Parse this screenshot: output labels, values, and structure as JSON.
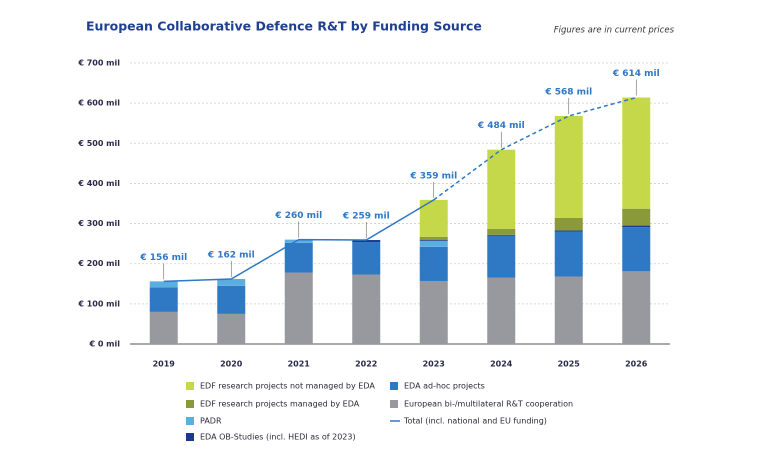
{
  "chart_data": {
    "type": "bar",
    "stacked": true,
    "title": "European Collaborative Defence R&T by Funding Source",
    "note": "Figures are in current prices",
    "categories": [
      "2019",
      "2020",
      "2021",
      "2022",
      "2023",
      "2024",
      "2025",
      "2026"
    ],
    "series": [
      {
        "name": "European bi-/multilateral R&T cooperation",
        "color": "#98999e",
        "values": [
          80,
          75,
          178,
          173,
          157,
          165,
          168,
          181
        ]
      },
      {
        "name": "EDA ad-hoc projects",
        "color": "#2f78c4",
        "values": [
          61,
          70,
          74,
          81,
          85,
          105,
          112,
          110
        ]
      },
      {
        "name": "PADR",
        "color": "#5aaee0",
        "values": [
          15,
          17,
          8,
          0,
          15,
          0,
          0,
          0
        ]
      },
      {
        "name": "EDA OB-Studies (incl. HEDI as of 2023)",
        "color": "#1c3a8a",
        "values": [
          0,
          0,
          0,
          5,
          2,
          2,
          3,
          4
        ]
      },
      {
        "name": "EDF research projects managed by EDA",
        "color": "#8a9a3a",
        "values": [
          0,
          0,
          0,
          0,
          8,
          15,
          31,
          42
        ]
      },
      {
        "name": "EDF research projects not managed by EDA",
        "color": "#c5d84a",
        "values": [
          0,
          0,
          0,
          0,
          92,
          197,
          254,
          277
        ]
      }
    ],
    "total": {
      "name": "Total (incl. national and EU funding)",
      "type": "line",
      "color": "#2f78c4",
      "dash_start": 4,
      "values": [
        156,
        162,
        260,
        259,
        359,
        484,
        568,
        614
      ],
      "value_labels": [
        "€ 156 mil",
        "€ 162 mil",
        "€ 260 mil",
        "€ 259 mil",
        "€ 359 mil",
        "€ 484 mil",
        "€ 568 mil",
        "€ 614 mil"
      ]
    },
    "ylim": [
      0,
      700
    ],
    "yticks": [
      {
        "value": 0,
        "label": "€ 0 mil"
      },
      {
        "value": 100,
        "label": "€ 100 mil"
      },
      {
        "value": 200,
        "label": "€ 200 mil"
      },
      {
        "value": 300,
        "label": "€ 300 mil"
      },
      {
        "value": 400,
        "label": "€ 400 mil"
      },
      {
        "value": 500,
        "label": "€ 500 mil"
      },
      {
        "value": 600,
        "label": "€ 600 mil"
      },
      {
        "value": 700,
        "label": "€ 700 mil"
      }
    ],
    "grid": true
  }
}
